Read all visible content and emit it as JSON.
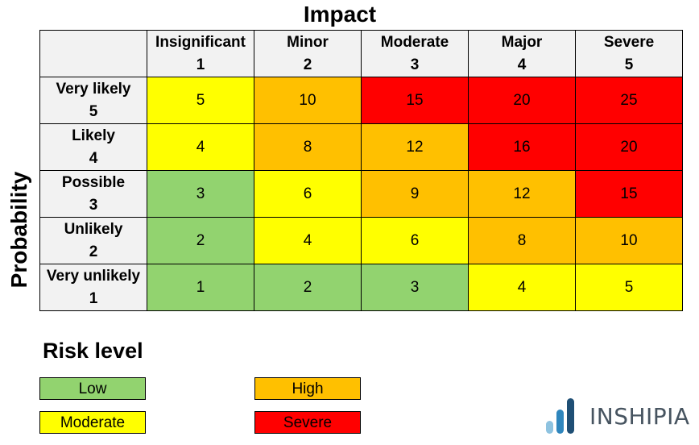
{
  "chart_data": {
    "type": "heatmap",
    "title": "",
    "xlabel": "Impact",
    "ylabel": "Probability",
    "columns": [
      {
        "label": "Insignificant",
        "value": "1"
      },
      {
        "label": "Minor",
        "value": "2"
      },
      {
        "label": "Moderate",
        "value": "3"
      },
      {
        "label": "Major",
        "value": "4"
      },
      {
        "label": "Severe",
        "value": "5"
      }
    ],
    "rows": [
      {
        "label": "Very likely",
        "value": "5",
        "cells": [
          "5",
          "10",
          "15",
          "20",
          "25"
        ],
        "levels": [
          "moderate",
          "high",
          "severe",
          "severe",
          "severe"
        ]
      },
      {
        "label": "Likely",
        "value": "4",
        "cells": [
          "4",
          "8",
          "12",
          "16",
          "20"
        ],
        "levels": [
          "moderate",
          "high",
          "high",
          "severe",
          "severe"
        ]
      },
      {
        "label": "Possible",
        "value": "3",
        "cells": [
          "3",
          "6",
          "9",
          "12",
          "15"
        ],
        "levels": [
          "low",
          "moderate",
          "high",
          "high",
          "severe"
        ]
      },
      {
        "label": "Unlikely",
        "value": "2",
        "cells": [
          "2",
          "4",
          "6",
          "8",
          "10"
        ],
        "levels": [
          "low",
          "moderate",
          "moderate",
          "high",
          "high"
        ]
      },
      {
        "label": "Very unlikely",
        "value": "1",
        "cells": [
          "1",
          "2",
          "3",
          "4",
          "5"
        ],
        "levels": [
          "low",
          "low",
          "low",
          "moderate",
          "moderate"
        ]
      }
    ]
  },
  "legend": {
    "title": "Risk level",
    "items": [
      {
        "key": "low",
        "label": "Low",
        "color": "#92d36f"
      },
      {
        "key": "high",
        "label": "High",
        "color": "#ffc000"
      },
      {
        "key": "moderate",
        "label": "Moderate",
        "color": "#ffff00"
      },
      {
        "key": "severe",
        "label": "Severe",
        "color": "#ff0000"
      }
    ]
  },
  "brand": {
    "name": "INSHIPIA",
    "logo_icon": "bar-chart-logo-icon",
    "colors": [
      "#8ec3e0",
      "#2f86bd",
      "#1f4f75"
    ]
  },
  "header_bg": "#f2f2f2"
}
